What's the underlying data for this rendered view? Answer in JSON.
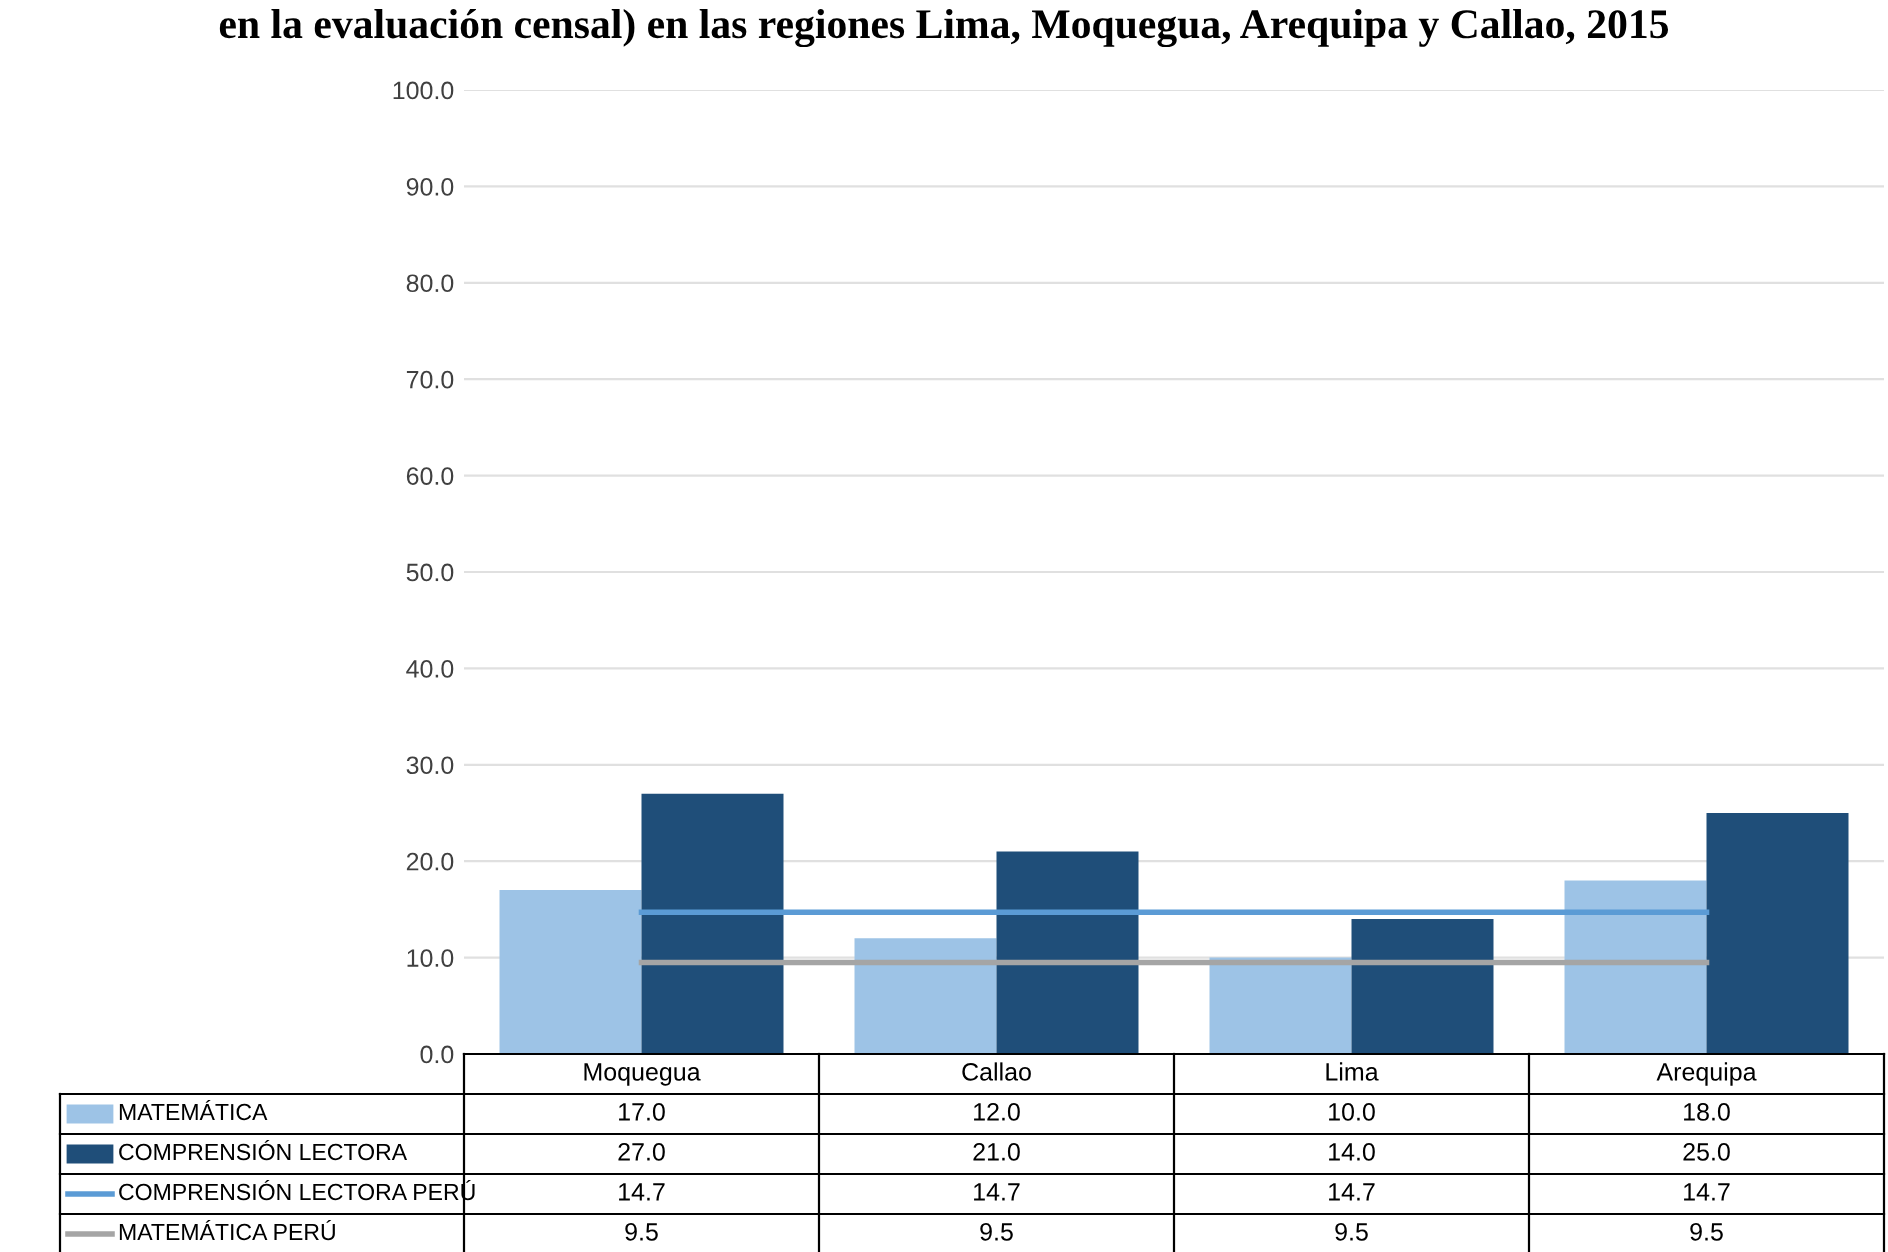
{
  "chart_data": {
    "type": "bar",
    "title": "en la evaluación censal) en las regiones Lima, Moquegua, Arequipa y Callao, 2015",
    "categories": [
      "Moquegua",
      "Callao",
      "Lima",
      "Arequipa"
    ],
    "series": [
      {
        "name": "MATEMÁTICA",
        "color": "#9dc3e6",
        "values": [
          17.0,
          12.0,
          10.0,
          18.0
        ],
        "value_labels": [
          "17.0",
          "12.0",
          "10.0",
          "18.0"
        ]
      },
      {
        "name": "COMPRENSIÓN LECTORA",
        "color": "#1f4e79",
        "values": [
          27.0,
          21.0,
          14.0,
          25.0
        ],
        "value_labels": [
          "27.0",
          "21.0",
          "14.0",
          "25.0"
        ]
      },
      {
        "name": "COMPRENSIÓN LECTORA PERÚ",
        "type": "line",
        "color": "#5b9bd5",
        "values": [
          14.7,
          14.7,
          14.7,
          14.7
        ],
        "value_labels": [
          "14.7",
          "14.7",
          "14.7",
          "14.7"
        ]
      },
      {
        "name": "MATEMÁTICA PERÚ",
        "type": "line",
        "color": "#a5a5a5",
        "values": [
          9.5,
          9.5,
          9.5,
          9.5
        ],
        "value_labels": [
          "9.5",
          "9.5",
          "9.5",
          "9.5"
        ]
      }
    ],
    "ylim": [
      0,
      100
    ],
    "yticks": [
      {
        "value": 0,
        "label": "0.0"
      },
      {
        "value": 10,
        "label": "10.0"
      },
      {
        "value": 20,
        "label": "20.0"
      },
      {
        "value": 30,
        "label": "30.0"
      },
      {
        "value": 40,
        "label": "40.0"
      },
      {
        "value": 50,
        "label": "50.0"
      },
      {
        "value": 60,
        "label": "60.0"
      },
      {
        "value": 70,
        "label": "70.0"
      },
      {
        "value": 80,
        "label": "80.0"
      },
      {
        "value": 90,
        "label": "90.0"
      },
      {
        "value": 100,
        "label": "100.0"
      }
    ],
    "grid": "y",
    "legend": "bottom"
  }
}
